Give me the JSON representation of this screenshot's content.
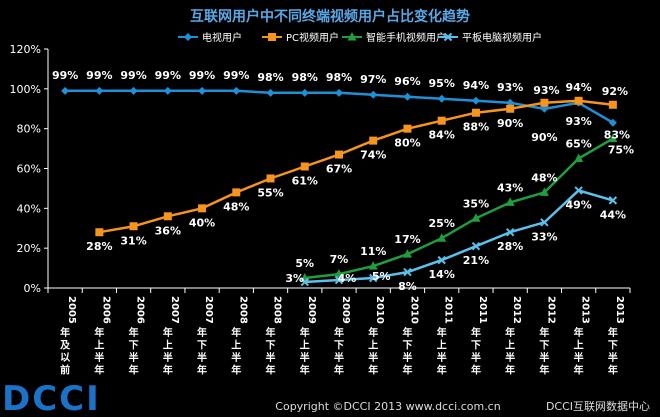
{
  "chart_data": {
    "type": "line",
    "title": "互联网用户中不同终端视频用户占比变化趋势",
    "categories": [
      "2005年及以前",
      "2006年上半年",
      "2006年下半年",
      "2007年上半年",
      "2007年下半年",
      "2008年上半年",
      "2008年下半年",
      "2009年上半年",
      "2009年下半年",
      "2010年上半年",
      "2010年下半年",
      "2011年上半年",
      "2011年下半年",
      "2012年上半年",
      "2012年下半年",
      "2013年上半年",
      "2013年下半年"
    ],
    "ylim": [
      0,
      120
    ],
    "yticks": [
      "0%",
      "20%",
      "40%",
      "60%",
      "80%",
      "100%",
      "120%"
    ],
    "yunit": "%",
    "legend_position": "top",
    "series": [
      {
        "name": "电视用户",
        "color": "#1e90d8",
        "marker": "diamond",
        "values": [
          99,
          99,
          99,
          99,
          99,
          99,
          98,
          98,
          98,
          97,
          96,
          95,
          94,
          93,
          90,
          93,
          83
        ],
        "labels": [
          "99%",
          "99%",
          "99%",
          "99%",
          "99%",
          "99%",
          "98%",
          "98%",
          "98%",
          "97%",
          "96%",
          "95%",
          "94%",
          "93%",
          "90%",
          "93%",
          "83%"
        ]
      },
      {
        "name": "PC视频用户",
        "color": "#f7941d",
        "marker": "square",
        "values": [
          null,
          28,
          31,
          36,
          40,
          48,
          55,
          61,
          67,
          74,
          80,
          84,
          88,
          90,
          93,
          94,
          92
        ],
        "labels": [
          null,
          "28%",
          "31%",
          "36%",
          "40%",
          "48%",
          "55%",
          "61%",
          "67%",
          "74%",
          "80%",
          "84%",
          "88%",
          "90%",
          "93%",
          "94%",
          "92%"
        ]
      },
      {
        "name": "智能手机视频用户",
        "color": "#1e9e3e",
        "marker": "triangle",
        "values": [
          null,
          null,
          null,
          null,
          null,
          null,
          null,
          5,
          7,
          11,
          17,
          25,
          35,
          43,
          48,
          65,
          75
        ],
        "labels": [
          null,
          null,
          null,
          null,
          null,
          null,
          null,
          "5%",
          "7%",
          "11%",
          "17%",
          "25%",
          "35%",
          "43%",
          "48%",
          "65%",
          "75%"
        ]
      },
      {
        "name": "平板电脑视频用户",
        "color": "#5bc0eb",
        "marker": "x",
        "values": [
          null,
          null,
          null,
          null,
          null,
          null,
          null,
          3,
          4,
          5,
          8,
          14,
          21,
          28,
          33,
          49,
          44
        ],
        "labels": [
          null,
          null,
          null,
          null,
          null,
          null,
          null,
          "3%",
          "4%",
          "5%",
          "8%",
          "14%",
          "21%",
          "28%",
          "33%",
          "49%",
          "44%"
        ]
      }
    ]
  },
  "footer": {
    "logo": "DCCI",
    "copyright": "Copyright ©DCCI 2013 www.dcci.com.cn",
    "center": "DCCI互联网数据中心"
  },
  "colors": {
    "background": "#000000",
    "title": "#5aa7e6",
    "axis": "#ffffff",
    "logo": "#1a73c8"
  }
}
